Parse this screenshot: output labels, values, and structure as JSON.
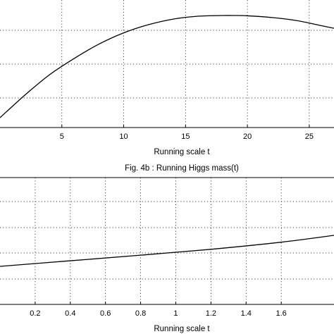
{
  "chart_data": [
    {
      "type": "line",
      "title": "",
      "xlabel": "Running  scale t",
      "ylabel": "",
      "xlim": [
        0,
        27
      ],
      "xticks": [
        5,
        10,
        15,
        20,
        25
      ],
      "grid": true,
      "series": [
        {
          "x": [
            0,
            2,
            4,
            6,
            8,
            10,
            12,
            14,
            16,
            18,
            19,
            20,
            22,
            24,
            26,
            27
          ],
          "y": [
            0.0,
            0.22,
            0.42,
            0.58,
            0.72,
            0.83,
            0.91,
            0.965,
            0.993,
            1.0,
            1.0,
            0.997,
            0.98,
            0.95,
            0.9,
            0.875
          ]
        }
      ]
    },
    {
      "type": "line",
      "title": "Fig. 4b :  Running  Higgs mass(t)",
      "xlabel": "Running  scale t",
      "ylabel": "",
      "xlim": [
        0,
        1.9
      ],
      "xticks": [
        0.2,
        0.4,
        0.6,
        0.8,
        1,
        1.2,
        1.4,
        1.6
      ],
      "xtick_labels": [
        "0.2",
        "0.4",
        "0.6",
        "0.8",
        "1",
        "1.2",
        "1.4",
        "1.6"
      ],
      "grid": true,
      "series": [
        {
          "x": [
            0,
            0.4,
            0.8,
            1.2,
            1.6,
            1.9
          ],
          "y": [
            0.0,
            0.18,
            0.36,
            0.55,
            0.78,
            1.0
          ]
        }
      ]
    }
  ]
}
